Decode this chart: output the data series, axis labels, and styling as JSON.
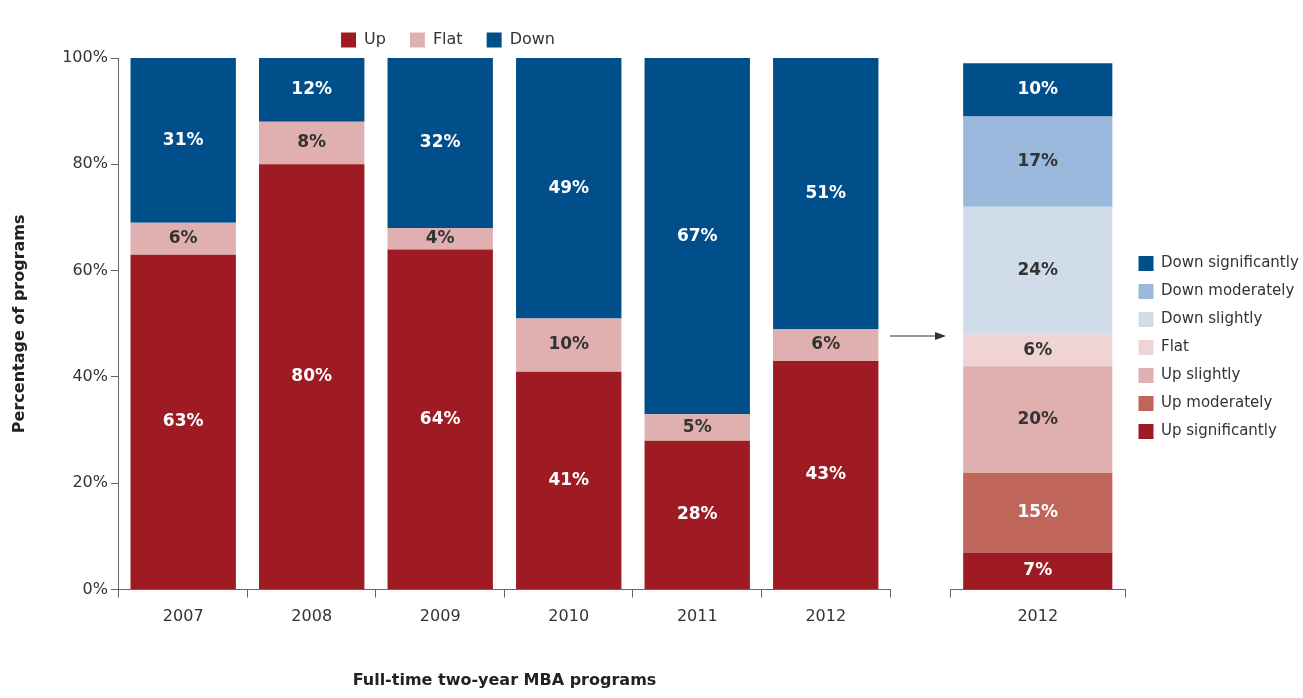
{
  "chart_data": [
    {
      "type": "bar",
      "stacked": true,
      "categories": [
        "2007",
        "2008",
        "2009",
        "2010",
        "2011",
        "2012"
      ],
      "series": [
        {
          "name": "Up",
          "color": "#9e1b24",
          "values": [
            63,
            80,
            64,
            41,
            28,
            43
          ],
          "value_labels": [
            "63%",
            "80%",
            "64%",
            "41%",
            "28%",
            "43%"
          ]
        },
        {
          "name": "Flat",
          "color": "#e0b0b0",
          "values": [
            6,
            8,
            4,
            10,
            5,
            6
          ],
          "value_labels": [
            "6%",
            "8%",
            "4%",
            "10%",
            "5%",
            "6%"
          ]
        },
        {
          "name": "Down",
          "color": "#004f8b",
          "values": [
            31,
            12,
            32,
            49,
            67,
            51
          ],
          "value_labels": [
            "31%",
            "12%",
            "32%",
            "49%",
            "67%",
            "51%"
          ]
        }
      ],
      "ylim": [
        0,
        100
      ],
      "yticks": [
        {
          "value": 0,
          "label": "0%"
        },
        {
          "value": 20,
          "label": "20%"
        },
        {
          "value": 40,
          "label": "40%"
        },
        {
          "value": 60,
          "label": "60%"
        },
        {
          "value": 80,
          "label": "80%"
        },
        {
          "value": 100,
          "label": "100%"
        }
      ],
      "ylabel": "Percentage of programs",
      "xlabel": "Full-time two-year MBA programs",
      "legend": "top"
    },
    {
      "type": "bar",
      "stacked": true,
      "categories": [
        "2012"
      ],
      "series": [
        {
          "name": "Up significantly",
          "color": "#9e1b24",
          "values": [
            7
          ],
          "value_labels": [
            "7%"
          ]
        },
        {
          "name": "Up moderately",
          "color": "#c0655a",
          "values": [
            15
          ],
          "value_labels": [
            "15%"
          ]
        },
        {
          "name": "Up slightly",
          "color": "#e0b0b0",
          "values": [
            20
          ],
          "value_labels": [
            "20%"
          ]
        },
        {
          "name": "Flat",
          "color": "#f0d3d3",
          "values": [
            6
          ],
          "value_labels": [
            "6%"
          ]
        },
        {
          "name": "Down slightly",
          "color": "#d0dcea",
          "values": [
            24
          ],
          "value_labels": [
            "24%"
          ]
        },
        {
          "name": "Down moderately",
          "color": "#9ab8dc",
          "values": [
            17
          ],
          "value_labels": [
            "17%"
          ]
        },
        {
          "name": "Down significantly",
          "color": "#004f8b",
          "values": [
            10
          ],
          "value_labels": [
            "10%"
          ]
        }
      ],
      "ylim": [
        0,
        100
      ],
      "tick_labels": "x",
      "legend": "right"
    }
  ]
}
